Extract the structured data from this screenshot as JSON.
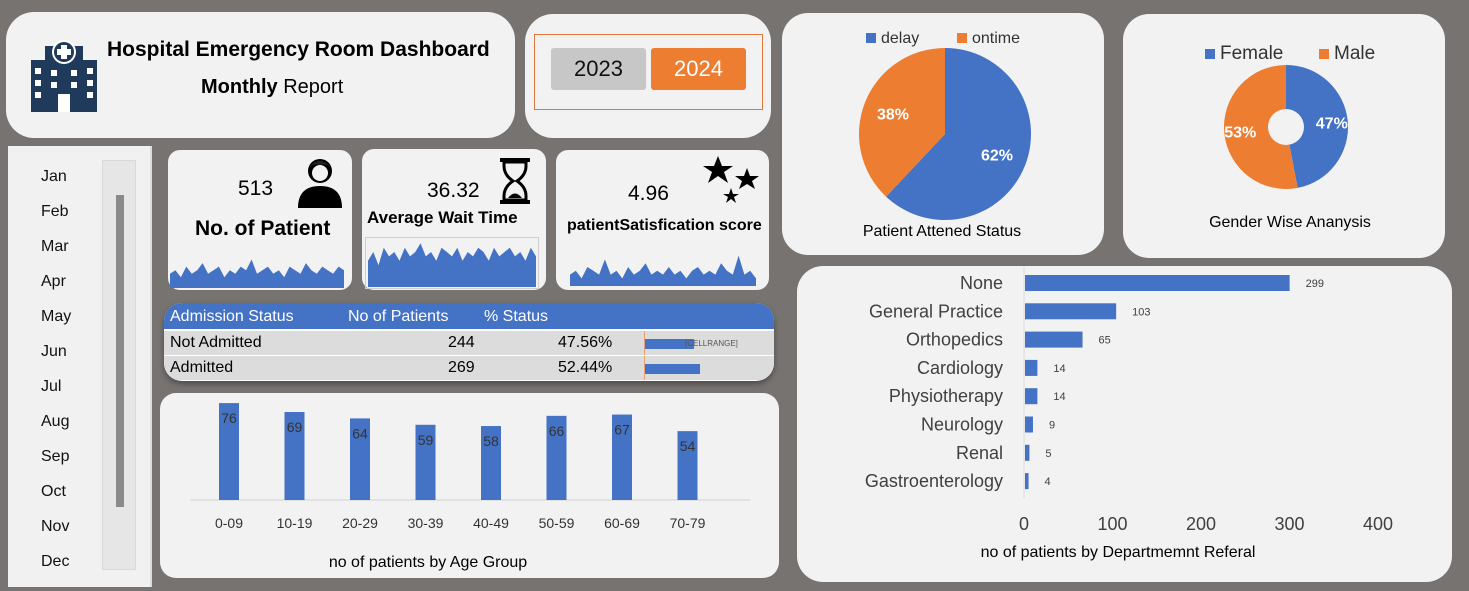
{
  "header": {
    "title": "Hospital Emergency Room Dashboard",
    "subtitle_bold": "Monthly",
    "subtitle_regular": "Report"
  },
  "years": {
    "y2023": "2023",
    "y2024": "2024",
    "selected": "2024"
  },
  "months": [
    "Jan",
    "Feb",
    "Mar",
    "Apr",
    "May",
    "Jun",
    "Jul",
    "Aug",
    "Sep",
    "Oct",
    "Nov",
    "Dec"
  ],
  "kpis": {
    "patients": {
      "value": "513",
      "label": "No. of Patient"
    },
    "wait": {
      "value": "36.32",
      "label": "Average Wait Time"
    },
    "score": {
      "value": "4.96",
      "label": "patientSatisfication score"
    }
  },
  "admission": {
    "headers": [
      "Admission Status",
      "No of Patients",
      "% Status"
    ],
    "rows": [
      {
        "status": "Not Admitted",
        "count": "244",
        "pct": "47.56%",
        "fraction": 0.4756
      },
      {
        "status": "Admitted",
        "count": "269",
        "pct": "52.44%",
        "fraction": 0.5244
      }
    ],
    "note": "[CELLRANGE]"
  },
  "chart_data": [
    {
      "type": "bar",
      "title": "no of patients by Age Group",
      "categories": [
        "0-09",
        "10-19",
        "20-29",
        "30-39",
        "40-49",
        "50-59",
        "60-69",
        "70-79"
      ],
      "values": [
        76,
        69,
        64,
        59,
        58,
        66,
        67,
        54
      ],
      "ylim": [
        0,
        80
      ],
      "color": "#4472c4"
    },
    {
      "type": "pie",
      "title": "Patient Attened Status",
      "labels": [
        "delay",
        "ontime"
      ],
      "values": [
        62,
        38
      ],
      "value_labels": [
        "62%",
        "38%"
      ],
      "colors": [
        "#4472c4",
        "#ed7d31"
      ],
      "legend": "top"
    },
    {
      "type": "pie",
      "title": "Gender Wise Ananysis",
      "labels": [
        "Female",
        "Male"
      ],
      "values": [
        47,
        53
      ],
      "value_labels": [
        "47%",
        "53%"
      ],
      "colors": [
        "#4472c4",
        "#ed7d31"
      ],
      "legend": "top",
      "donut": true
    },
    {
      "type": "bar",
      "orientation": "horizontal",
      "title": "no of patients by Departmemnt Referal",
      "categories": [
        "None",
        "General Practice",
        "Orthopedics",
        "Cardiology",
        "Physiotherapy",
        "Neurology",
        "Renal",
        "Gastroenterology"
      ],
      "values": [
        299,
        103,
        65,
        14,
        14,
        9,
        5,
        4
      ],
      "xlim": [
        0,
        400
      ],
      "xticks": [
        "0",
        "100",
        "200",
        "300",
        "400"
      ],
      "color": "#4472c4"
    }
  ],
  "sparklines": {
    "patients": [
      4,
      5,
      3,
      6,
      4,
      5,
      7,
      4,
      5,
      6,
      3,
      5,
      4,
      6,
      5,
      8,
      4,
      5,
      6,
      4,
      5,
      3,
      6,
      5,
      4,
      7,
      5,
      4,
      6,
      5,
      4,
      6,
      5
    ],
    "wait": [
      6,
      8,
      5,
      9,
      7,
      8,
      6,
      9,
      7,
      8,
      10,
      7,
      8,
      6,
      9,
      8,
      7,
      9,
      6,
      8,
      7,
      9,
      8,
      6,
      9,
      7,
      8,
      9,
      7,
      8,
      6,
      9,
      7
    ],
    "score": [
      3,
      4,
      2,
      5,
      4,
      3,
      7,
      3,
      4,
      2,
      5,
      3,
      4,
      6,
      3,
      4,
      3,
      5,
      3,
      4,
      2,
      4,
      5,
      3,
      4,
      3,
      6,
      4,
      3,
      8,
      3,
      4,
      2
    ]
  },
  "colors": {
    "blue": "#4472c4",
    "orange": "#ed7d31"
  }
}
